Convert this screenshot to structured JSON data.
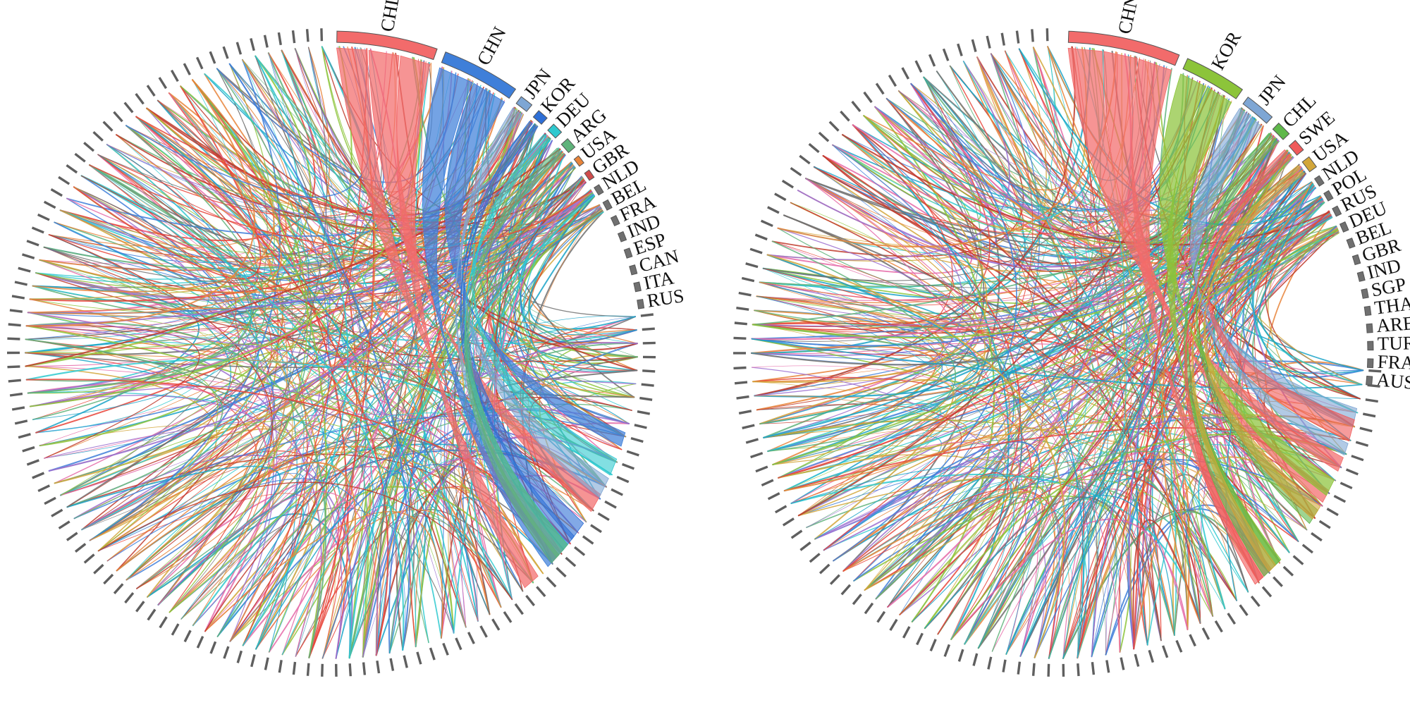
{
  "chart_data": [
    {
      "type": "chord",
      "panel": "left",
      "labeled_countries": [
        "CHL",
        "CHN",
        "JPN",
        "KOR",
        "DEU",
        "ARG",
        "USA",
        "GBR",
        "NLD",
        "BEL",
        "FRA",
        "IND",
        "ESP",
        "CAN",
        "ITA",
        "RUS"
      ],
      "segment_colors": {
        "CHL": "#f26b6b",
        "CHN": "#3f7fd9",
        "JPN": "#7ea6d4",
        "KOR": "#2e6fd6",
        "DEU": "#2fc9cf",
        "ARG": "#5fb37a",
        "USA": "#e8843a",
        "GBR": "#d04c4c",
        "NLD": "#707070",
        "BEL": "#707070",
        "FRA": "#707070",
        "IND": "#707070",
        "ESP": "#707070",
        "CAN": "#707070",
        "ITA": "#707070",
        "RUS": "#707070"
      },
      "relative_weights": [
        9,
        7,
        1.2,
        1,
        1,
        1,
        0.8,
        0.6,
        0.5,
        0.5,
        0.5,
        0.45,
        0.45,
        0.4,
        0.4,
        0.4
      ],
      "unlabeled_segments": 110
    },
    {
      "type": "chord",
      "panel": "right",
      "labeled_countries": [
        "CHN",
        "KOR",
        "JPN",
        "CHL",
        "SWE",
        "USA",
        "NLD",
        "POL",
        "RUS",
        "DEU",
        "BEL",
        "GBR",
        "IND",
        "SGP",
        "THA",
        "ARE",
        "TUR",
        "FRA",
        "AUS"
      ],
      "segment_colors": {
        "CHN": "#f26b6b",
        "KOR": "#8cc43a",
        "JPN": "#7ea6d4",
        "CHL": "#5fb84a",
        "SWE": "#f05a5a",
        "USA": "#d2a63a",
        "NLD": "#707070",
        "POL": "#707070",
        "RUS": "#707070",
        "DEU": "#707070",
        "BEL": "#707070",
        "GBR": "#707070",
        "IND": "#707070",
        "SGP": "#707070",
        "THA": "#707070",
        "ARE": "#707070",
        "TUR": "#707070",
        "FRA": "#707070",
        "AUS": "#707070"
      },
      "relative_weights": [
        9,
        5,
        2.5,
        1.2,
        1,
        1,
        0.5,
        0.5,
        0.5,
        0.45,
        0.45,
        0.45,
        0.45,
        0.4,
        0.4,
        0.4,
        0.4,
        0.4,
        0.4
      ],
      "unlabeled_segments": 100
    }
  ],
  "palette": [
    "#e8443a",
    "#3f7fd9",
    "#2fc9cf",
    "#8cc43a",
    "#e8843a",
    "#9b6fd0",
    "#d2a63a",
    "#5fb37a",
    "#e56aa8",
    "#707070",
    "#1aa3c8",
    "#c0392b"
  ]
}
